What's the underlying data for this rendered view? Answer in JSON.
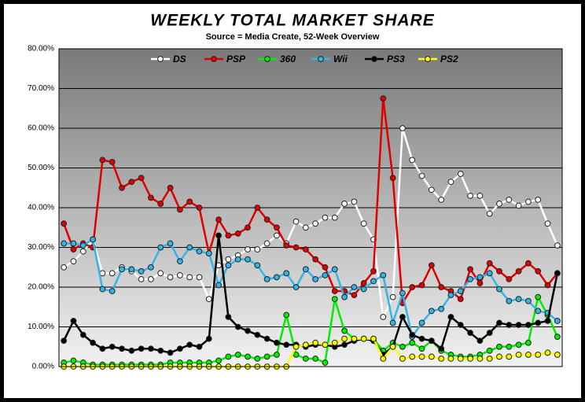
{
  "chart_data": {
    "type": "line",
    "title": "WEEKLY TOTAL MARKET SHARE",
    "subtitle": "Source = Media Create, 52-Week Overview",
    "ylim": [
      0,
      80
    ],
    "yticks": [
      {
        "value": 0,
        "label": "0.00%"
      },
      {
        "value": 10,
        "label": "10.00%"
      },
      {
        "value": 20,
        "label": "20.00%"
      },
      {
        "value": 30,
        "label": "30.00%"
      },
      {
        "value": 40,
        "label": "40.00%"
      },
      {
        "value": 50,
        "label": "50.00%"
      },
      {
        "value": 60,
        "label": "60.00%"
      },
      {
        "value": 70,
        "label": "70.00%"
      },
      {
        "value": 80,
        "label": "80.00%"
      }
    ],
    "grid": true,
    "legend": "top",
    "series": [
      {
        "name": "DS",
        "color": "#ffffff",
        "values": [
          25,
          26.5,
          29,
          32,
          23.5,
          23.5,
          25,
          24,
          22,
          22,
          23.5,
          22.5,
          23,
          22.5,
          22.5,
          17,
          25.5,
          27,
          28,
          29.5,
          29.5,
          31,
          33,
          31,
          36.5,
          35,
          36,
          37.5,
          37.5,
          41,
          41.5,
          36,
          32,
          12.5,
          17.5,
          60,
          52,
          48,
          44.5,
          42,
          46.5,
          48.5,
          43,
          43,
          38.5,
          41,
          42,
          40.5,
          41.5,
          42,
          36,
          30.5
        ]
      },
      {
        "name": "PSP",
        "color": "#e00000",
        "values": [
          36,
          29.5,
          31,
          30,
          52,
          51.5,
          45,
          46.5,
          47.5,
          42.5,
          41,
          45,
          39.5,
          41.5,
          40,
          28.5,
          37,
          33,
          33.5,
          35,
          40,
          37,
          35,
          30.5,
          30,
          29.5,
          27,
          25,
          19,
          19,
          18,
          21,
          24,
          67.5,
          47.5,
          16,
          20,
          20.5,
          25.5,
          20,
          19,
          17,
          24.5,
          21,
          26,
          24,
          22,
          24,
          26,
          24,
          20.5,
          23.5
        ]
      },
      {
        "name": "360",
        "color": "#00ee00",
        "values": [
          1,
          1.5,
          1,
          0.5,
          0.5,
          0.5,
          0.5,
          0.5,
          0.5,
          0.5,
          0.5,
          1,
          1,
          1,
          1,
          1,
          1.5,
          2.5,
          3,
          2.5,
          2,
          2.5,
          3,
          13,
          3,
          2,
          2,
          1,
          17,
          9,
          7,
          7,
          7,
          4,
          6,
          5,
          6,
          4.5,
          6.5,
          4,
          3,
          2.5,
          2.5,
          3,
          4,
          5,
          5,
          5.5,
          6,
          17.5,
          13,
          7.5
        ]
      },
      {
        "name": "Wii",
        "color": "#33b5e5",
        "values": [
          31,
          31,
          30.5,
          32,
          19.5,
          19,
          24.5,
          24.5,
          24,
          25,
          30,
          31,
          26.5,
          30,
          29,
          28.5,
          20.5,
          25.5,
          27,
          27,
          25.5,
          22,
          22.5,
          23.5,
          20,
          24.5,
          22,
          23,
          24.5,
          17.5,
          20,
          19.5,
          21.5,
          23,
          11,
          18.5,
          7.5,
          11,
          14,
          14.5,
          18,
          19,
          22,
          22.5,
          23.5,
          19.5,
          16.5,
          17,
          16.5,
          14,
          13.5,
          11.5
        ]
      },
      {
        "name": "PS3",
        "color": "#000000",
        "values": [
          6.5,
          11.5,
          8,
          6,
          4.5,
          5,
          4.5,
          4,
          4.5,
          4.5,
          4,
          3.5,
          4.5,
          5.5,
          5,
          7,
          33,
          12.5,
          10,
          9,
          8,
          7,
          6,
          5.5,
          5.5,
          5,
          5.5,
          5.5,
          5,
          5.5,
          6.5,
          7,
          6.5,
          3,
          5,
          12.5,
          8,
          7,
          6.5,
          4.5,
          12.5,
          10.5,
          8.5,
          6.5,
          8.5,
          11,
          10.5,
          10.5,
          10.5,
          11,
          11.5,
          23.5
        ]
      },
      {
        "name": "PS2",
        "color": "#ffff00",
        "values": [
          0,
          0,
          0,
          0,
          0,
          0,
          0,
          0,
          0,
          0,
          0,
          0,
          0,
          0,
          0,
          0,
          0,
          0,
          0,
          0,
          0,
          0,
          0,
          0,
          5,
          5.5,
          6,
          5.5,
          6,
          7,
          7,
          7,
          7,
          2,
          5,
          2,
          2.5,
          2.5,
          2.5,
          2,
          2,
          2,
          2,
          2,
          2,
          2.5,
          2.5,
          3,
          3,
          3,
          3.5,
          3
        ]
      }
    ]
  }
}
